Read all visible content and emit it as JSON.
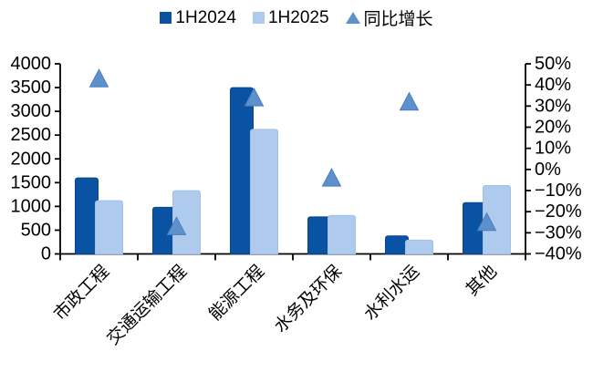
{
  "legend": {
    "items": [
      {
        "label": "1H2024",
        "marker": "square",
        "color": "#0a52a2"
      },
      {
        "label": "1H2025",
        "marker": "square",
        "color": "#aecbee"
      },
      {
        "label": "同比增长",
        "marker": "triangle",
        "color": "#5d91cc"
      }
    ]
  },
  "chart_data": {
    "type": "bar",
    "categories": [
      "市政工程",
      "交通运输工程",
      "能源工程",
      "水务及环保",
      "水利水运",
      "其他"
    ],
    "series": [
      {
        "name": "1H2024",
        "chart": "bar",
        "axis": "left",
        "color": "#0a52a2",
        "stroke": "#08458a",
        "values": [
          1600,
          980,
          3500,
          780,
          380,
          1080
        ]
      },
      {
        "name": "1H2025",
        "chart": "bar",
        "axis": "left",
        "color": "#aecbee",
        "stroke": "#a2c0e8",
        "values": [
          1120,
          1330,
          2620,
          810,
          290,
          1440
        ]
      },
      {
        "name": "同比增长",
        "chart": "scatter",
        "axis": "right",
        "marker": "triangle",
        "color": "#5d91cc",
        "stroke": "#4b7ebd",
        "values": [
          43,
          -27,
          34,
          -4,
          32,
          -25
        ]
      }
    ],
    "left_axis": {
      "min": 0,
      "max": 4000,
      "step": 500,
      "labels": [
        "4000",
        "3500",
        "3000",
        "2500",
        "2000",
        "1500",
        "1000",
        "500",
        "0"
      ]
    },
    "right_axis": {
      "min": -40,
      "max": 50,
      "step": 10,
      "labels": [
        "50%",
        "40%",
        "30%",
        "20%",
        "10%",
        "0%",
        "−10%",
        "−20%",
        "−30%",
        "−40%"
      ]
    },
    "grid": false,
    "legend_position": "top",
    "axis_color": "#000000"
  }
}
